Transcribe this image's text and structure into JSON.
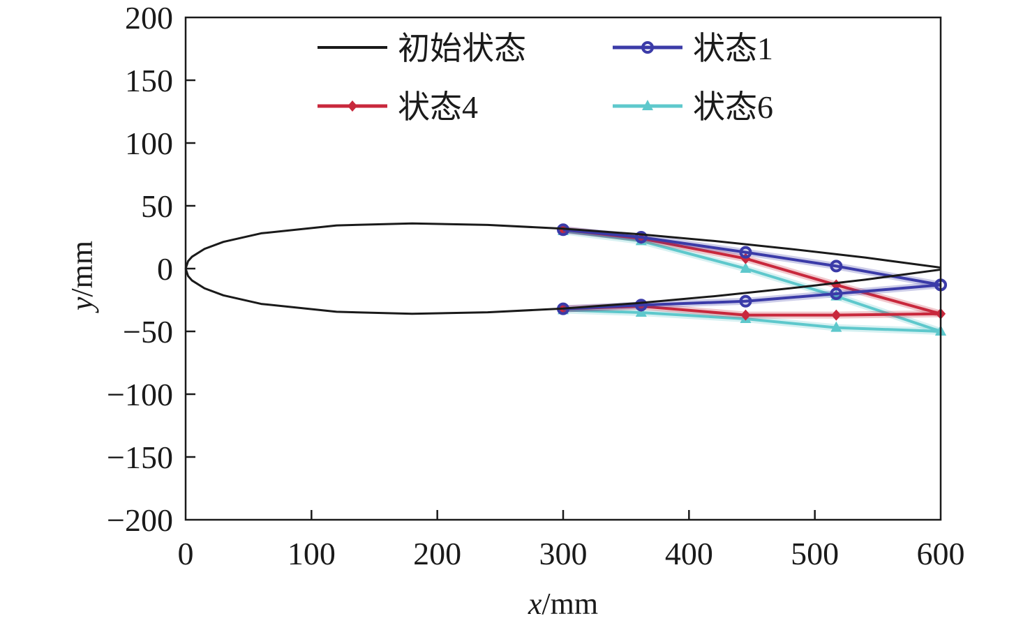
{
  "chart_data": {
    "type": "line",
    "title": "",
    "xlabel": {
      "var": "x",
      "unit": "/mm"
    },
    "ylabel": {
      "var": "y",
      "unit": "/mm"
    },
    "xlim": [
      0,
      600
    ],
    "ylim": [
      -200,
      200
    ],
    "xticks": [
      0,
      100,
      200,
      300,
      400,
      500,
      600
    ],
    "yticks": [
      200,
      150,
      100,
      50,
      0,
      -50,
      -100,
      -150,
      -200
    ],
    "ytick_labels": [
      "200",
      "150",
      "100",
      "50",
      "0",
      "−50",
      "−100",
      "−150",
      "−200"
    ],
    "grid": false,
    "legend_position": "top",
    "series": [
      {
        "name": "初始状态",
        "color": "#1a1a1a",
        "marker": "none",
        "upper": {
          "x": [
            0,
            2,
            5,
            15,
            30,
            60,
            120,
            180,
            240,
            300,
            360,
            420,
            480,
            540,
            600
          ],
          "y": [
            0,
            6.0,
            9.4,
            15.7,
            21.3,
            28.1,
            34.4,
            36.0,
            34.8,
            31.8,
            27.4,
            22.0,
            15.7,
            8.8,
            0.8
          ]
        },
        "lower": {
          "x": [
            0,
            2,
            5,
            15,
            30,
            60,
            120,
            180,
            240,
            300,
            360,
            420,
            480,
            540,
            600
          ],
          "y": [
            0,
            -6.0,
            -9.4,
            -15.7,
            -21.3,
            -28.1,
            -34.4,
            -36.0,
            -34.8,
            -31.8,
            -27.4,
            -22.0,
            -15.7,
            -8.8,
            -0.8
          ]
        }
      },
      {
        "name": "状态1",
        "color": "#3b3ba8",
        "marker": "circle",
        "upper": {
          "x": [
            300,
            362,
            445,
            517,
            600
          ],
          "y": [
            31,
            25,
            13,
            2,
            -13
          ]
        },
        "lower": {
          "x": [
            300,
            362,
            445,
            517,
            600
          ],
          "y": [
            -32,
            -29,
            -26,
            -20,
            -13
          ]
        }
      },
      {
        "name": "状态4",
        "color": "#c8283c",
        "marker": "diamond",
        "upper": {
          "x": [
            300,
            362,
            445,
            517,
            600
          ],
          "y": [
            31,
            24,
            8,
            -13,
            -36
          ]
        },
        "lower": {
          "x": [
            300,
            362,
            445,
            517,
            600
          ],
          "y": [
            -32,
            -30,
            -37,
            -37,
            -36
          ]
        }
      },
      {
        "name": "状态6",
        "color": "#5ec8cc",
        "marker": "triangle",
        "upper": {
          "x": [
            300,
            362,
            445,
            517,
            600
          ],
          "y": [
            30,
            22,
            0,
            -22,
            -50
          ]
        },
        "lower": {
          "x": [
            300,
            362,
            445,
            517,
            600
          ],
          "y": [
            -33,
            -35,
            -40,
            -47,
            -50
          ]
        }
      }
    ]
  }
}
